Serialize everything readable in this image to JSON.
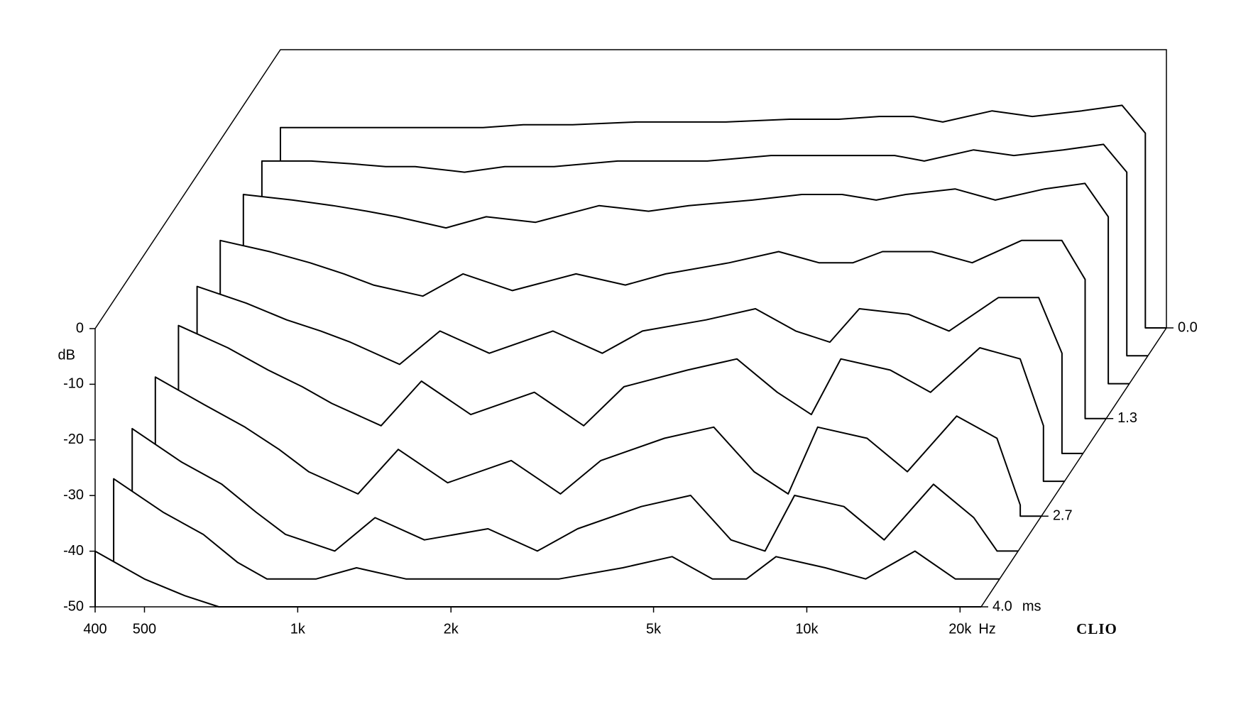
{
  "chart_data": {
    "type": "waterfall",
    "x": [
      400,
      500,
      600,
      700,
      800,
      1000,
      1200,
      1500,
      2000,
      2500,
      3000,
      4000,
      5000,
      6000,
      7000,
      8000,
      10000,
      12000,
      15000,
      18000,
      20000
    ],
    "z": [
      0,
      0.4,
      0.8,
      1.3,
      1.8,
      2.2,
      2.7,
      3.2,
      3.6,
      4.0
    ],
    "series": [
      {
        "values": [
          -14,
          -14,
          -14,
          -14,
          -14,
          -14,
          -13.5,
          -13.5,
          -13,
          -13,
          -13,
          -12.5,
          -12.5,
          -12,
          -12,
          -13,
          -11,
          -12,
          -11,
          -10,
          -15
        ]
      },
      {
        "values": [
          -15,
          -15,
          -15.5,
          -16,
          -16,
          -17,
          -16,
          -16,
          -15,
          -15,
          -15,
          -14,
          -14,
          -14,
          -14,
          -15,
          -13,
          -14,
          -13,
          -12,
          -17
        ]
      },
      {
        "values": [
          -16,
          -17,
          -18,
          -19,
          -20,
          -22,
          -20,
          -21,
          -18,
          -19,
          -18,
          -17,
          -16,
          -16,
          -17,
          -16,
          -15,
          -17,
          -15,
          -14,
          -20
        ]
      },
      {
        "values": [
          -18,
          -20,
          -22,
          -24,
          -26,
          -28,
          -24,
          -27,
          -24,
          -26,
          -24,
          -22,
          -20,
          -22,
          -22,
          -20,
          -20,
          -22,
          -18,
          -18,
          -25
        ]
      },
      {
        "values": [
          -20,
          -23,
          -26,
          -28,
          -30,
          -34,
          -28,
          -32,
          -28,
          -32,
          -28,
          -26,
          -24,
          -28,
          -30,
          -24,
          -25,
          -28,
          -22,
          -22,
          -32
        ]
      },
      {
        "values": [
          -22,
          -26,
          -30,
          -33,
          -36,
          -40,
          -32,
          -38,
          -34,
          -40,
          -33,
          -30,
          -28,
          -34,
          -38,
          -28,
          -30,
          -34,
          -26,
          -28,
          -40
        ]
      },
      {
        "values": [
          -25,
          -30,
          -34,
          -38,
          -42,
          -46,
          -38,
          -44,
          -40,
          -46,
          -40,
          -36,
          -34,
          -42,
          -46,
          -34,
          -36,
          -42,
          -32,
          -36,
          -48
        ]
      },
      {
        "values": [
          -28,
          -34,
          -38,
          -43,
          -47,
          -50,
          -44,
          -48,
          -46,
          -50,
          -46,
          -42,
          -40,
          -48,
          -50,
          -40,
          -42,
          -48,
          -38,
          -44,
          -50
        ]
      },
      {
        "values": [
          -32,
          -38,
          -42,
          -47,
          -50,
          -50,
          -48,
          -50,
          -50,
          -50,
          -50,
          -48,
          -46,
          -50,
          -50,
          -46,
          -48,
          -50,
          -45,
          -50,
          -50
        ]
      },
      {
        "values": [
          -40,
          -45,
          -48,
          -50,
          -50,
          -50,
          -50,
          -50,
          -50,
          -50,
          -50,
          -50,
          -50,
          -50,
          -50,
          -50,
          -50,
          -50,
          -50,
          -50,
          -50
        ]
      }
    ],
    "color": "#000000",
    "xlog": true,
    "xlim": [
      400,
      22000
    ],
    "xticks": [
      400,
      500,
      {
        "value": 1000,
        "label": "1k"
      },
      {
        "value": 2000,
        "label": "2k"
      },
      {
        "value": 5000,
        "label": "5k"
      },
      {
        "value": 10000,
        "label": "10k"
      },
      {
        "value": 20000,
        "label": "20k"
      }
    ],
    "x_unit": "Hz",
    "ylim": [
      -50,
      0
    ],
    "yticks": [
      0,
      -10,
      -20,
      -30,
      -40,
      -50
    ],
    "y_label": "dB",
    "zlim": [
      0,
      4
    ],
    "zticks": [
      {
        "value": 0,
        "label": "0.0"
      },
      1.3,
      2.7,
      {
        "value": 4,
        "label": "4.0"
      }
    ],
    "z_unit": "ms",
    "brand": "CLIO"
  }
}
